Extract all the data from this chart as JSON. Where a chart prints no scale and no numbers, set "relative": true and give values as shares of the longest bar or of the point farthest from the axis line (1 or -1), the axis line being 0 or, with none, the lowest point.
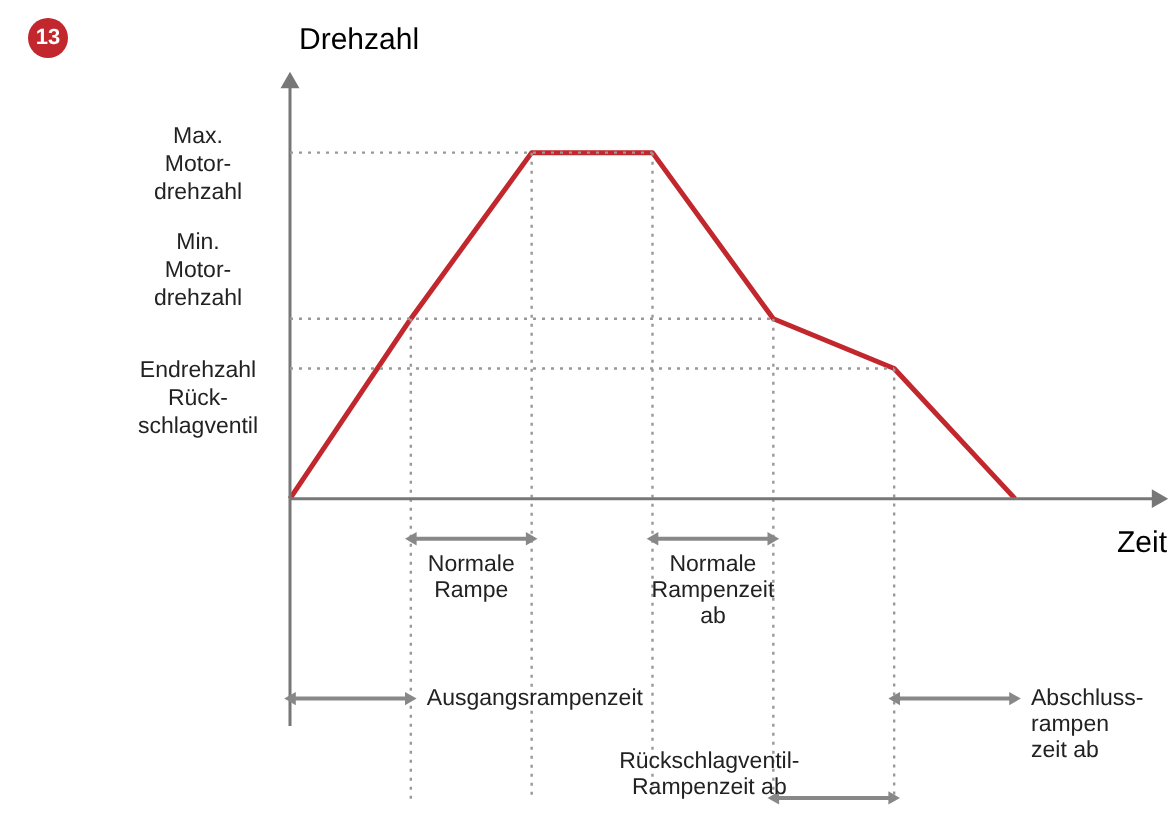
{
  "chart_data": {
    "type": "line",
    "xlabel": "Zeit",
    "ylabel": "Drehzahl",
    "relative": true,
    "categories": [
      null,
      null,
      null,
      null,
      null,
      null,
      null
    ],
    "series": [
      {
        "color": "#c1272d",
        "values": [
          0,
          0.52,
          1,
          1,
          0.52,
          0.376,
          0
        ]
      }
    ],
    "ref_lines": [
      {
        "axis": "y",
        "value": 1,
        "label": "Max.\nMotor-\ndrehzahl",
        "line_style": "dotted"
      },
      {
        "axis": "y",
        "value": 0.52,
        "label": "Min.\nMotor-\ndrehzahl",
        "line_style": "dotted"
      },
      {
        "axis": "y",
        "value": 0.376,
        "label": "Endrehzahl\nRück-\nschlagventil",
        "line_style": "dotted"
      }
    ],
    "annotations": [
      "13",
      "Normale\nRampe",
      "Normale\nRampenzeit\nab",
      "Ausgangsrampenzeit",
      "Abschluss-\nrampen\nzeit ab",
      "Rückschlagventil-\nRampenzeit ab"
    ],
    "line_style": "solid",
    "grid": "x"
  }
}
